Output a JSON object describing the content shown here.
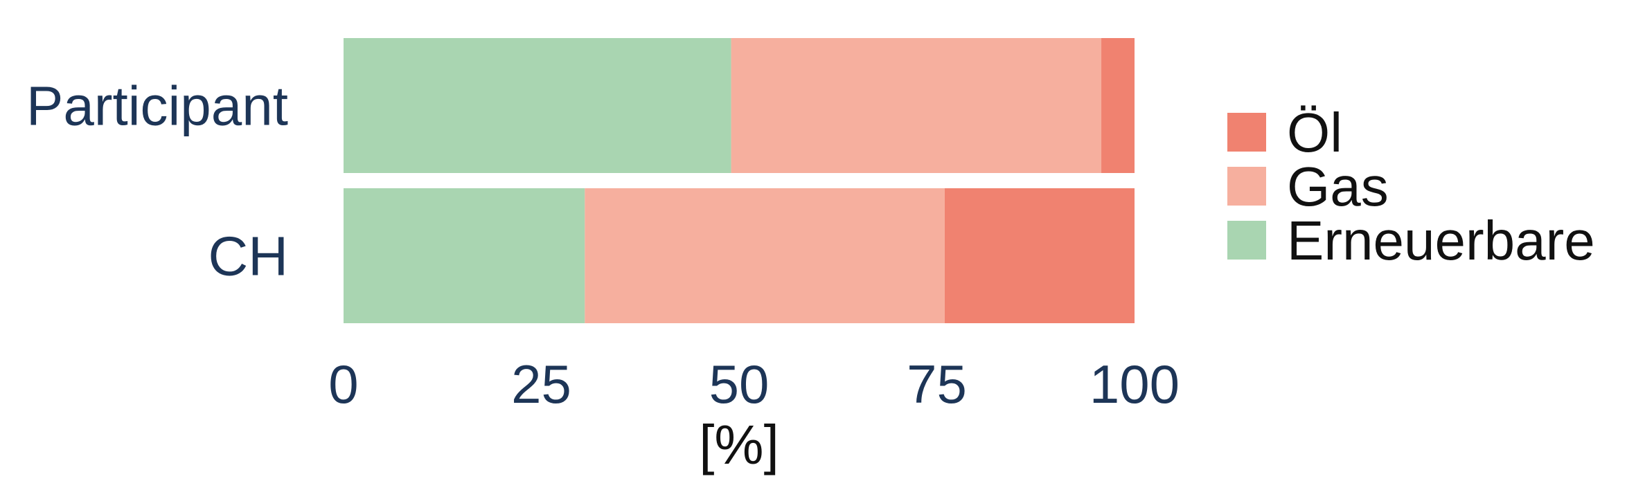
{
  "chart_data": {
    "type": "bar",
    "orientation": "horizontal",
    "stacked": true,
    "categories": [
      "Participant",
      "CH"
    ],
    "series": [
      {
        "name": "Erneuerbare",
        "color": "#a9d5b1",
        "values": [
          49,
          30.5
        ]
      },
      {
        "name": "Gas",
        "color": "#f6af9e",
        "values": [
          46.8,
          45.5
        ]
      },
      {
        "name": "Öl",
        "color": "#f08270",
        "values": [
          4.2,
          24
        ]
      }
    ],
    "legend_order": [
      "Öl",
      "Gas",
      "Erneuerbare"
    ],
    "xlabel": "[%]",
    "ylabel": "",
    "xlim": [
      0,
      100
    ],
    "xticks": [
      0,
      25,
      50,
      75,
      100
    ],
    "grid": false,
    "legend_position": "right"
  }
}
